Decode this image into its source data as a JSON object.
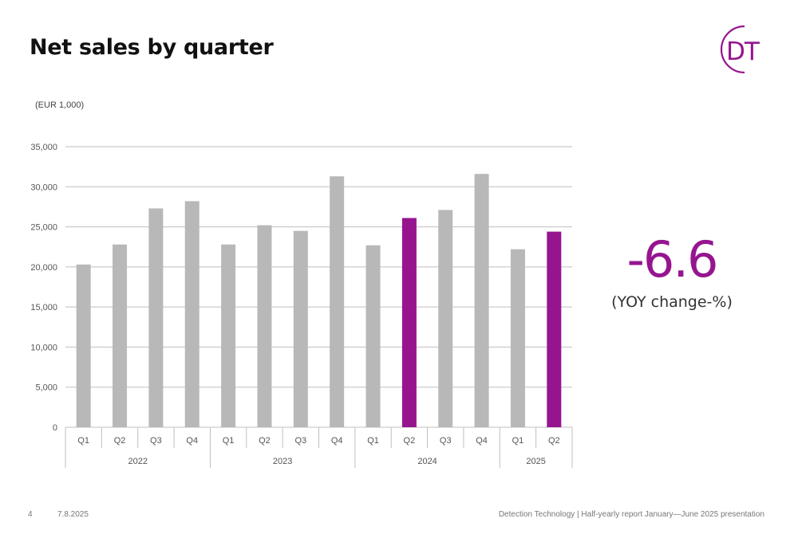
{
  "slide": {
    "title": "Net sales by quarter",
    "page_number": "4",
    "date": "7.8.2025",
    "footer": "Detection Technology | Half-yearly report January—June 2025 presentation",
    "logo_text": "DT"
  },
  "kpi": {
    "value": "-6.6",
    "label": "(YOY change-%)"
  },
  "colors": {
    "bar_default": "#b8b8b8",
    "bar_highlight": "#96158f",
    "gridline": "#bfbfbf",
    "accent": "#96158f"
  },
  "chart_data": {
    "type": "bar",
    "unit_label": "(EUR 1,000)",
    "ylim": [
      0,
      35000
    ],
    "yticks": [
      0,
      5000,
      10000,
      15000,
      20000,
      25000,
      30000,
      35000
    ],
    "ytick_labels": [
      "0",
      "5,000",
      "10,000",
      "15,000",
      "20,000",
      "25,000",
      "30,000",
      "35,000"
    ],
    "grid": true,
    "legend": "none",
    "years": [
      {
        "label": "2022",
        "quarters": [
          {
            "q": "Q1",
            "value": 20300,
            "highlight": false
          },
          {
            "q": "Q2",
            "value": 22800,
            "highlight": false
          },
          {
            "q": "Q3",
            "value": 27300,
            "highlight": false
          },
          {
            "q": "Q4",
            "value": 28200,
            "highlight": false
          }
        ]
      },
      {
        "label": "2023",
        "quarters": [
          {
            "q": "Q1",
            "value": 22800,
            "highlight": false
          },
          {
            "q": "Q2",
            "value": 25200,
            "highlight": false
          },
          {
            "q": "Q3",
            "value": 24500,
            "highlight": false
          },
          {
            "q": "Q4",
            "value": 31300,
            "highlight": false
          }
        ]
      },
      {
        "label": "2024",
        "quarters": [
          {
            "q": "Q1",
            "value": 22700,
            "highlight": false
          },
          {
            "q": "Q2",
            "value": 26100,
            "highlight": true
          },
          {
            "q": "Q3",
            "value": 27100,
            "highlight": false
          },
          {
            "q": "Q4",
            "value": 31600,
            "highlight": false
          }
        ]
      },
      {
        "label": "2025",
        "quarters": [
          {
            "q": "Q1",
            "value": 22200,
            "highlight": false
          },
          {
            "q": "Q2",
            "value": 24400,
            "highlight": true
          }
        ]
      }
    ]
  }
}
